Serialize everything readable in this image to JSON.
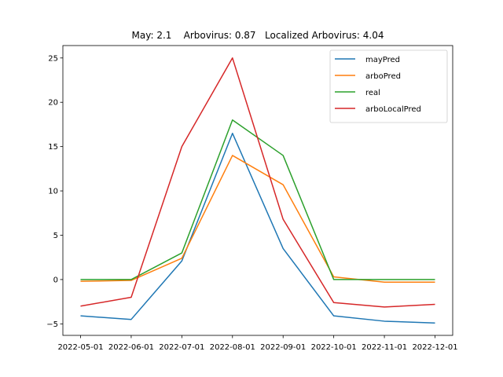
{
  "chart_data": {
    "type": "line",
    "title": "May: 2.1    Arbovirus: 0.87   Localized Arbovirus: 4.04",
    "xlabel": "",
    "ylabel": "",
    "x": [
      "2022-05-01",
      "2022-06-01",
      "2022-07-01",
      "2022-08-01",
      "2022-09-01",
      "2022-10-01",
      "2022-11-01",
      "2022-12-01"
    ],
    "ylim": [
      -6.3,
      26.4
    ],
    "yticks": [
      -5,
      0,
      5,
      10,
      15,
      20,
      25
    ],
    "grid": false,
    "legend_position": "top-right",
    "series": [
      {
        "name": "mayPred",
        "color": "#1f77b4",
        "values": [
          -4.1,
          -4.5,
          2.1,
          16.5,
          3.5,
          -4.1,
          -4.7,
          -4.9
        ]
      },
      {
        "name": "arboPred",
        "color": "#ff7f0e",
        "values": [
          -0.2,
          -0.1,
          2.4,
          14.0,
          10.7,
          0.3,
          -0.3,
          -0.3
        ]
      },
      {
        "name": "real",
        "color": "#2ca02c",
        "values": [
          0.0,
          0.0,
          3.0,
          18.0,
          14.0,
          0.0,
          0.0,
          0.0
        ]
      },
      {
        "name": "arboLocalPred",
        "color": "#d62728",
        "values": [
          -3.0,
          -2.0,
          15.0,
          25.0,
          6.8,
          -2.6,
          -3.1,
          -2.8
        ]
      }
    ]
  }
}
